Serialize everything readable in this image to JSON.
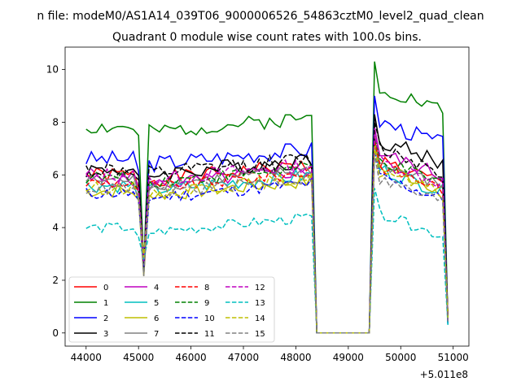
{
  "chart_data": {
    "type": "line",
    "suptitle": "n file: modeM0/AS1A14_039T06_9000006526_54863cztM0_level2_quad_clean",
    "title": "Quadrant 0 module wise count rates with 100.0s bins.",
    "xlabel": "",
    "ylabel": "",
    "x_offset_label": "+5.011e8",
    "xlim": [
      43600,
      51300
    ],
    "ylim": [
      -0.5,
      10.85
    ],
    "xticks": [
      44000,
      45000,
      46000,
      47000,
      48000,
      49000,
      50000,
      51000
    ],
    "xtick_labels": [
      "44000",
      "45000",
      "46000",
      "47000",
      "48000",
      "49000",
      "50000",
      "51000"
    ],
    "yticks": [
      0,
      2,
      4,
      6,
      8,
      10
    ],
    "ytick_labels": [
      "0",
      "2",
      "4",
      "6",
      "8",
      "10"
    ],
    "legend_location": "lower-left",
    "series": [
      {
        "name": "0",
        "color": "#ff0000",
        "dash": "solid",
        "base": 6.0,
        "a2": 6.6,
        "amp": 0.35,
        "seed": 1
      },
      {
        "name": "1",
        "color": "#008000",
        "dash": "solid",
        "base": 7.8,
        "a2": 9.4,
        "amp": 0.35,
        "seed": 2
      },
      {
        "name": "2",
        "color": "#0000ff",
        "dash": "solid",
        "base": 6.6,
        "a2": 8.1,
        "amp": 0.4,
        "seed": 3
      },
      {
        "name": "3",
        "color": "#000000",
        "dash": "solid",
        "base": 6.2,
        "a2": 7.4,
        "amp": 0.4,
        "seed": 4
      },
      {
        "name": "4",
        "color": "#bf00bf",
        "dash": "solid",
        "base": 5.8,
        "a2": 6.9,
        "amp": 0.35,
        "seed": 5
      },
      {
        "name": "5",
        "color": "#00bfbf",
        "dash": "solid",
        "base": 5.6,
        "a2": 6.3,
        "amp": 0.35,
        "seed": 6
      },
      {
        "name": "6",
        "color": "#bfbf00",
        "dash": "solid",
        "base": 5.4,
        "a2": 6.4,
        "amp": 0.35,
        "seed": 7
      },
      {
        "name": "7",
        "color": "#808080",
        "dash": "solid",
        "base": 5.8,
        "a2": 6.5,
        "amp": 0.3,
        "seed": 8
      },
      {
        "name": "8",
        "color": "#ff0000",
        "dash": "dashed",
        "base": 5.7,
        "a2": 6.4,
        "amp": 0.3,
        "seed": 9
      },
      {
        "name": "9",
        "color": "#008000",
        "dash": "dashed",
        "base": 5.9,
        "a2": 6.6,
        "amp": 0.3,
        "seed": 10
      },
      {
        "name": "10",
        "color": "#0000ff",
        "dash": "dashed",
        "base": 5.3,
        "a2": 6.0,
        "amp": 0.3,
        "seed": 11
      },
      {
        "name": "11",
        "color": "#000000",
        "dash": "dashed",
        "base": 6.2,
        "a2": 7.1,
        "amp": 0.4,
        "seed": 12
      },
      {
        "name": "12",
        "color": "#bf00bf",
        "dash": "dashed",
        "base": 6.0,
        "a2": 6.6,
        "amp": 0.35,
        "seed": 13
      },
      {
        "name": "13",
        "color": "#00bfbf",
        "dash": "dashed",
        "base": 4.0,
        "a2": 4.6,
        "amp": 0.25,
        "seed": 14
      },
      {
        "name": "14",
        "color": "#bfbf00",
        "dash": "dashed",
        "base": 5.5,
        "a2": 6.2,
        "amp": 0.3,
        "seed": 15
      },
      {
        "name": "15",
        "color": "#808080",
        "dash": "dashed",
        "base": 5.5,
        "a2": 5.9,
        "amp": 0.3,
        "seed": 16
      }
    ]
  }
}
